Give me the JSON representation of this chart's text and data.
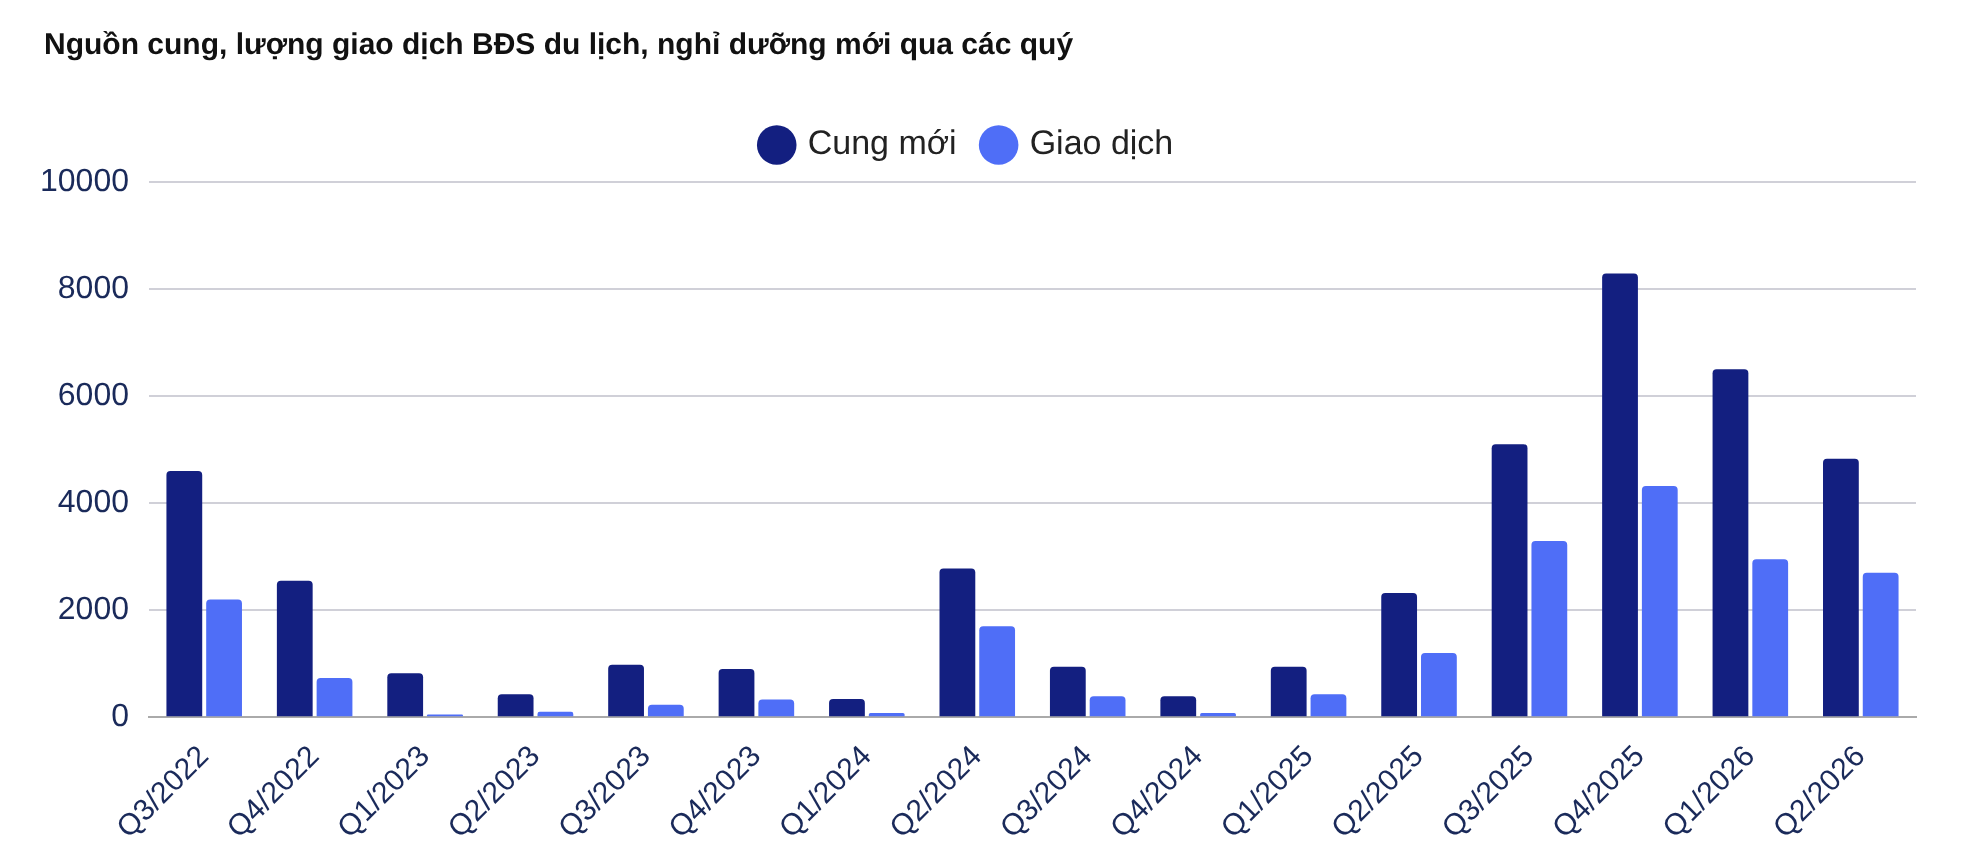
{
  "chart_data": {
    "type": "bar",
    "title": "Nguồn cung, lượng giao dịch BĐS du lịch, nghỉ dưỡng mới qua các quý",
    "categories": [
      "Q3/2022",
      "Q4/2022",
      "Q1/2023",
      "Q2/2023",
      "Q3/2023",
      "Q4/2023",
      "Q1/2024",
      "Q2/2024",
      "Q3/2024",
      "Q4/2024",
      "Q1/2025",
      "Q2/2025",
      "Q3/2025",
      "Q4/2025",
      "Q1/2026",
      "Q2/2026"
    ],
    "series": [
      {
        "name": "Cung mới",
        "color": "#131f80",
        "values": [
          4600,
          2550,
          820,
          430,
          980,
          900,
          340,
          2780,
          940,
          390,
          940,
          2320,
          5100,
          8290,
          6500,
          4830
        ]
      },
      {
        "name": "Giao dịch",
        "color": "#4f6ef7",
        "values": [
          2200,
          730,
          50,
          100,
          230,
          330,
          80,
          1700,
          390,
          80,
          430,
          1200,
          3290,
          4320,
          2950,
          2700
        ]
      }
    ],
    "ylim": [
      0,
      10000
    ],
    "yticks": [
      0,
      2000,
      4000,
      6000,
      8000,
      10000
    ],
    "grid": "y",
    "legend": "top"
  }
}
